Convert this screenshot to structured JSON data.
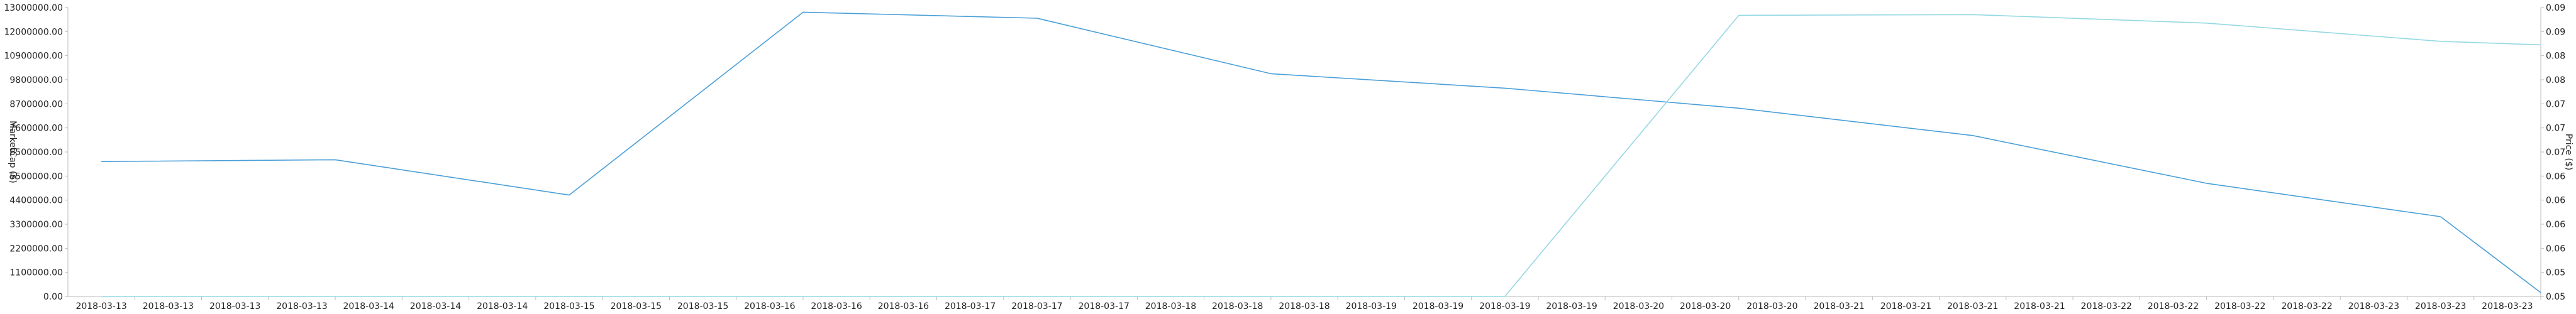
{
  "chart_data": {
    "type": "line",
    "title": "",
    "xlabel": "",
    "ylabel_left": "MarketCap ($)",
    "ylabel_right": "Price ($)",
    "x_ticks": [
      "2018-03-13",
      "2018-03-13",
      "2018-03-13",
      "2018-03-13",
      "2018-03-14",
      "2018-03-14",
      "2018-03-14",
      "2018-03-15",
      "2018-03-15",
      "2018-03-15",
      "2018-03-16",
      "2018-03-16",
      "2018-03-16",
      "2018-03-17",
      "2018-03-17",
      "2018-03-17",
      "2018-03-18",
      "2018-03-18",
      "2018-03-18",
      "2018-03-19",
      "2018-03-19",
      "2018-03-19",
      "2018-03-19",
      "2018-03-20",
      "2018-03-20",
      "2018-03-20",
      "2018-03-21",
      "2018-03-21",
      "2018-03-21",
      "2018-03-21",
      "2018-03-22",
      "2018-03-22",
      "2018-03-22",
      "2018-03-22",
      "2018-03-23",
      "2018-03-23",
      "2018-03-23"
    ],
    "y_left_ticks": [
      "0.00",
      "1100000.00",
      "2200000.00",
      "3300000.00",
      "4400000.00",
      "5500000.00",
      "6500000.00",
      "7600000.00",
      "8700000.00",
      "9800000.00",
      "10900000.00",
      "12000000.00",
      "13000000.00"
    ],
    "y_right_ticks": [
      "0.05",
      "0.05",
      "0.06",
      "0.06",
      "0.06",
      "0.06",
      "0.07",
      "0.07",
      "0.07",
      "0.08",
      "0.08",
      "0.09",
      "0.09"
    ],
    "ylim_left": [
      0,
      13000000
    ],
    "series": [
      {
        "axis": "left",
        "color": "#4a9fd8",
        "x": [
          0,
          3.5,
          7,
          10.5,
          14,
          17.5,
          21,
          24.5,
          28,
          31.5,
          35
        ],
        "values": [
          6070000,
          6150000,
          4560000,
          12790000,
          12520000,
          10020000,
          9370000,
          8470000,
          7240000,
          5090000,
          3590000
        ]
      },
      {
        "axis": "left",
        "color": "#4a9fd8",
        "x": [
          35,
          36.5
        ],
        "values": [
          3590000,
          170000
        ]
      },
      {
        "axis": "right",
        "color": "#94d8e3",
        "x": [
          0,
          21,
          24.5,
          28,
          31.5,
          35,
          36.5
        ],
        "values": [
          0,
          0,
          12650000,
          12680000,
          12300000,
          11480000,
          11320000
        ]
      }
    ]
  }
}
